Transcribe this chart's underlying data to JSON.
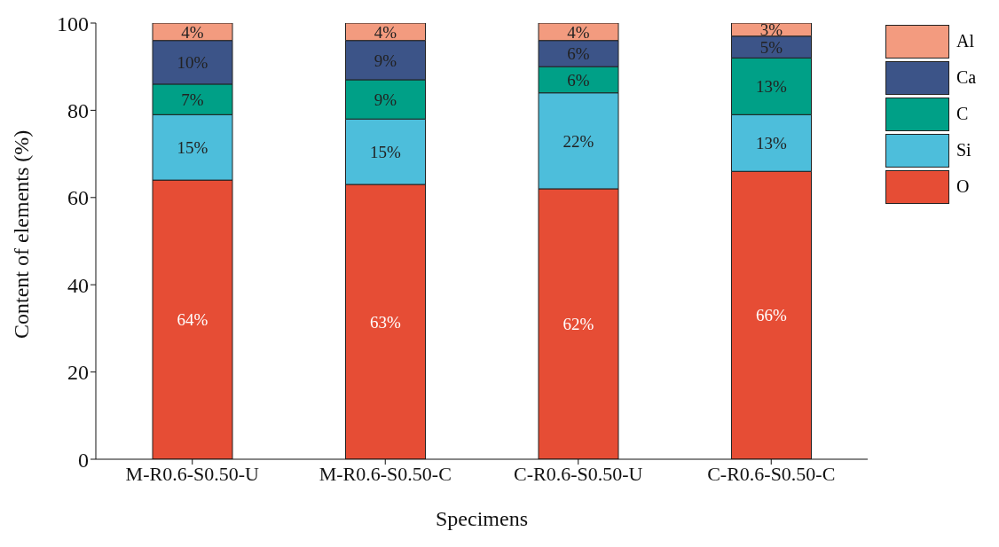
{
  "chart_data": {
    "type": "bar",
    "stacked": true,
    "xlabel": "Specimens",
    "ylabel": "Content of elements (%)",
    "categories": [
      "M-R0.6-S0.50-U",
      "M-R0.6-S0.50-C",
      "C-R0.6-S0.50-U",
      "C-R0.6-S0.50-C"
    ],
    "ylim": [
      0,
      100
    ],
    "yticks": [
      0,
      20,
      40,
      60,
      80,
      100
    ],
    "legend": "top right",
    "grid": false,
    "series": [
      {
        "name": "O",
        "color": "#e64d35",
        "values": [
          64,
          63,
          62,
          66
        ],
        "value_labels": [
          "64%",
          "63%",
          "62%",
          "66%"
        ]
      },
      {
        "name": "Si",
        "color": "#4dbedb",
        "values": [
          15,
          15,
          22,
          13
        ],
        "value_labels": [
          "15%",
          "15%",
          "22%",
          "13%"
        ]
      },
      {
        "name": "C",
        "color": "#00a087",
        "values": [
          7,
          9,
          6,
          13
        ],
        "value_labels": [
          "7%",
          "9%",
          "6%",
          "13%"
        ]
      },
      {
        "name": "Ca",
        "color": "#3c5488",
        "values": [
          10,
          9,
          6,
          5
        ],
        "value_labels": [
          "10%",
          "9%",
          "6%",
          "5%"
        ]
      },
      {
        "name": "Al",
        "color": "#f39b7f",
        "values": [
          4,
          4,
          4,
          3
        ],
        "value_labels": [
          "4%",
          "4%",
          "4%",
          "3%"
        ]
      }
    ]
  }
}
